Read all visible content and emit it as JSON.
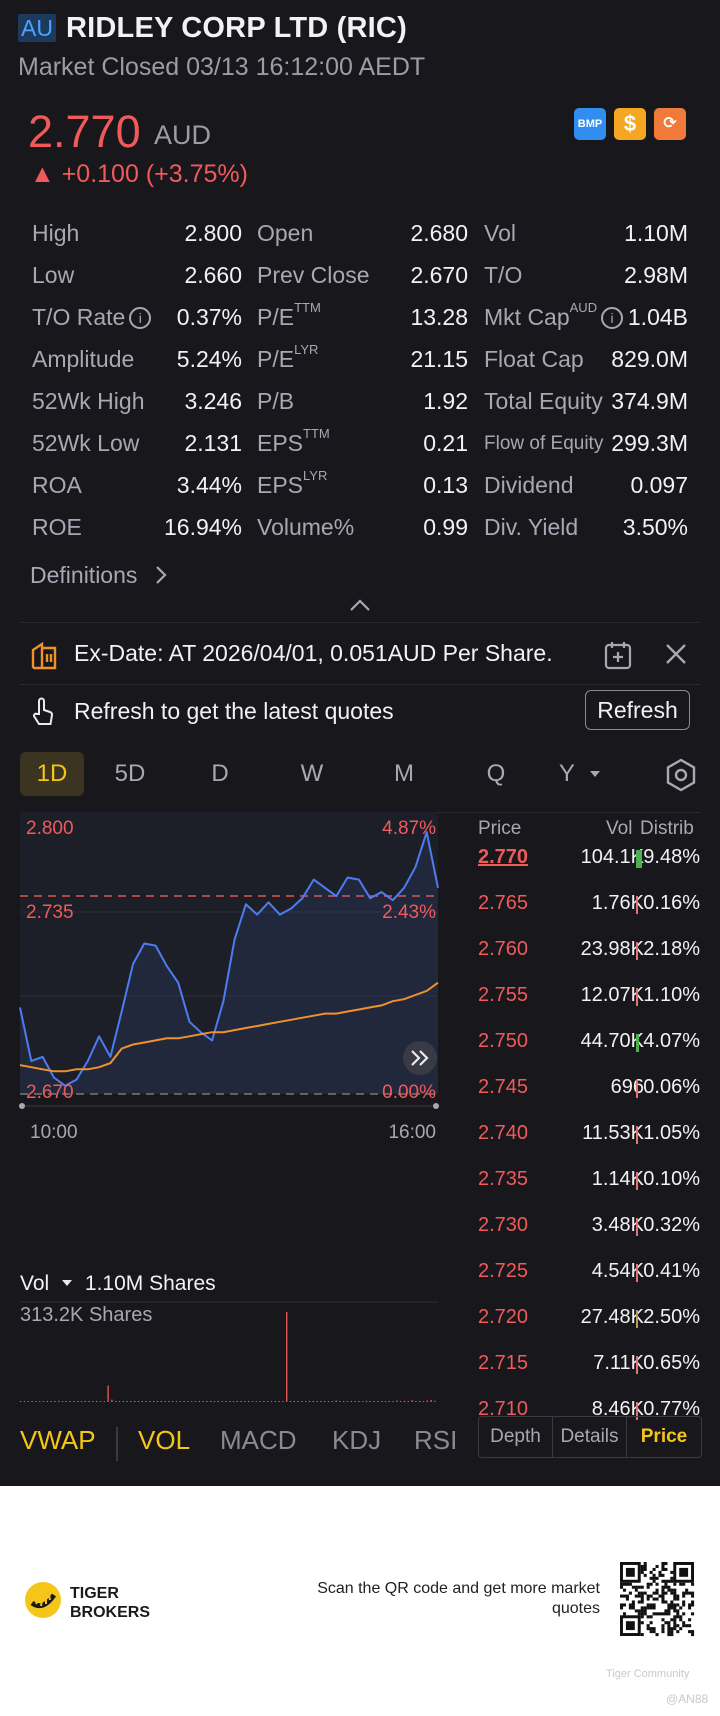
{
  "header": {
    "market_badge": "AU",
    "title": "RIDLEY CORP LTD (RIC)",
    "status": "Market Closed 03/13 16:12:00 AEDT",
    "price": "2.770",
    "currency": "AUD",
    "change": "▲ +0.100 (+3.75%)",
    "tags": [
      "BMP",
      "$",
      "⟳"
    ]
  },
  "stats": [
    [
      {
        "label": "High",
        "value": "2.800"
      },
      {
        "label": "Open",
        "value": "2.680"
      },
      {
        "label": "Vol",
        "value": "1.10M"
      }
    ],
    [
      {
        "label": "Low",
        "value": "2.660"
      },
      {
        "label": "Prev Close",
        "value": "2.670"
      },
      {
        "label": "T/O",
        "value": "2.98M"
      }
    ],
    [
      {
        "label": "T/O Rate",
        "value": "0.37%"
      },
      {
        "label": "P/E",
        "sup": "TTM",
        "value": "13.28"
      },
      {
        "label": "Mkt Cap",
        "sup": "AUD",
        "value": "1.04B"
      }
    ],
    [
      {
        "label": "Amplitude",
        "value": "5.24%"
      },
      {
        "label": "P/E",
        "sup": "LYR",
        "value": "21.15"
      },
      {
        "label": "Float Cap",
        "value": "829.0M"
      }
    ],
    [
      {
        "label": "52Wk High",
        "value": "3.246"
      },
      {
        "label": "P/B",
        "value": "1.92"
      },
      {
        "label": "Total Equity",
        "value": "374.9M"
      }
    ],
    [
      {
        "label": "52Wk Low",
        "value": "2.131"
      },
      {
        "label": "EPS",
        "sup": "TTM",
        "value": "0.21"
      },
      {
        "label": "Flow of Equity",
        "value": "299.3M"
      }
    ],
    [
      {
        "label": "ROA",
        "value": "3.44%"
      },
      {
        "label": "EPS",
        "sup": "LYR",
        "value": "0.13"
      },
      {
        "label": "Dividend",
        "value": "0.097"
      }
    ],
    [
      {
        "label": "ROE",
        "value": "16.94%"
      },
      {
        "label": "Volume%",
        "value": "0.99"
      },
      {
        "label": "Div. Yield",
        "value": "3.50%"
      }
    ]
  ],
  "definitions_label": "Definitions",
  "exdate_text": "Ex-Date: AT 2026/04/01, 0.051AUD Per Share.",
  "refresh_text": "Refresh to get the latest quotes",
  "refresh_button": "Refresh",
  "period_tabs": [
    "1D",
    "5D",
    "D",
    "W",
    "M",
    "Q",
    "Y"
  ],
  "chart_data": {
    "type": "line",
    "x_tick_labels": [
      "10:00",
      "16:00"
    ],
    "y_left_labels": [
      "2.800",
      "2.735",
      "2.670"
    ],
    "y_right_labels": [
      "4.87%",
      "2.43%",
      "0.00%"
    ],
    "ylim": [
      2.67,
      2.8
    ],
    "prev_close": 2.67,
    "series": [
      {
        "color": "#4d7cf0",
        "values": [
          2.712,
          2.686,
          2.688,
          2.678,
          2.674,
          2.677,
          2.686,
          2.698,
          2.688,
          2.71,
          2.733,
          2.743,
          2.742,
          2.732,
          2.724,
          2.705,
          2.7,
          2.696,
          2.715,
          2.745,
          2.762,
          2.757,
          2.763,
          2.757,
          2.76,
          2.765,
          2.774,
          2.77,
          2.766,
          2.775,
          2.774,
          2.765,
          2.768,
          2.764,
          2.77,
          2.78,
          2.797,
          2.77
        ]
      },
      {
        "color": "#f0922b",
        "values": [
          2.684,
          2.683,
          2.682,
          2.681,
          2.681,
          2.682,
          2.682,
          2.683,
          2.685,
          2.692,
          2.694,
          2.695,
          2.696,
          2.697,
          2.697,
          2.698,
          2.699,
          2.7,
          2.7,
          2.701,
          2.702,
          2.703,
          2.704,
          2.705,
          2.706,
          2.707,
          2.708,
          2.709,
          2.709,
          2.71,
          2.711,
          2.712,
          2.713,
          2.715,
          2.716,
          2.718,
          2.72,
          2.724
        ]
      }
    ]
  },
  "volume": {
    "label": "Vol",
    "total": "1.10M Shares",
    "scale_label": "313.2K Shares",
    "max": 313.2,
    "bars": [
      2,
      1,
      3,
      1,
      2,
      1,
      1,
      2,
      1,
      1,
      4,
      1,
      2,
      1,
      1,
      1,
      2,
      1,
      3,
      1,
      1,
      1,
      2,
      55,
      8,
      3,
      2,
      1,
      2,
      1,
      1,
      2,
      1,
      3,
      1,
      2,
      1,
      2,
      1,
      1,
      2,
      3,
      1,
      1,
      2,
      1,
      1,
      2,
      1,
      3,
      2,
      1,
      4,
      1,
      2,
      1,
      1,
      2,
      1,
      1,
      2,
      3,
      1,
      1,
      2,
      1,
      2,
      1,
      1,
      2,
      300,
      2,
      1,
      3,
      2,
      1,
      4,
      2,
      3,
      1,
      2,
      1,
      2,
      5,
      3,
      1,
      2,
      1,
      3,
      2,
      1,
      4,
      2,
      1,
      3,
      2,
      1,
      2,
      3,
      5,
      2,
      4,
      3,
      6,
      2,
      4,
      3,
      5,
      7,
      4
    ]
  },
  "indicator_tabs": [
    "VWAP",
    "VOL",
    "MACD",
    "KDJ",
    "RSI"
  ],
  "price_table": {
    "headers": {
      "price": "Price",
      "vol": "Vol",
      "distrib": "Distrib"
    },
    "rows": [
      {
        "price": "2.770",
        "vol": "104.1K",
        "distrib": "9.48%",
        "pct": 9.48,
        "bar": "#4caf50"
      },
      {
        "price": "2.765",
        "vol": "1.76K",
        "distrib": "0.16%",
        "pct": 0.16,
        "bar": "#e57373"
      },
      {
        "price": "2.760",
        "vol": "23.98K",
        "distrib": "2.18%",
        "pct": 2.18,
        "bar": "#e57373"
      },
      {
        "price": "2.755",
        "vol": "12.07K",
        "distrib": "1.10%",
        "pct": 1.1,
        "bar": "#e57373"
      },
      {
        "price": "2.750",
        "vol": "44.70K",
        "distrib": "4.07%",
        "pct": 4.07,
        "bar": "#4caf50"
      },
      {
        "price": "2.745",
        "vol": "696",
        "distrib": "0.06%",
        "pct": 0.06,
        "bar": "#e57373"
      },
      {
        "price": "2.740",
        "vol": "11.53K",
        "distrib": "1.05%",
        "pct": 1.05,
        "bar": "#e57373"
      },
      {
        "price": "2.735",
        "vol": "1.14K",
        "distrib": "0.10%",
        "pct": 0.1,
        "bar": "#e57373"
      },
      {
        "price": "2.730",
        "vol": "3.48K",
        "distrib": "0.32%",
        "pct": 0.32,
        "bar": "#e57373"
      },
      {
        "price": "2.725",
        "vol": "4.54K",
        "distrib": "0.41%",
        "pct": 0.41,
        "bar": "#e57373"
      },
      {
        "price": "2.720",
        "vol": "27.48K",
        "distrib": "2.50%",
        "pct": 2.5,
        "bar": "#b59a5a"
      },
      {
        "price": "2.715",
        "vol": "7.11K",
        "distrib": "0.65%",
        "pct": 0.65,
        "bar": "#e57373"
      },
      {
        "price": "2.710",
        "vol": "8.46K",
        "distrib": "0.77%",
        "pct": 0.77,
        "bar": "#e57373"
      }
    ]
  },
  "detail_tabs": [
    "Depth",
    "Details",
    "Price"
  ],
  "footer": {
    "brand_line1": "TIGER",
    "brand_line2": "BROKERS",
    "qr_caption": "Scan the QR code and get more market quotes",
    "watermark1": "Tiger Community",
    "watermark2": "@AN88"
  },
  "colors": {
    "up": "#f05a5a",
    "accent": "#f5c518",
    "line": "#4d7cf0",
    "avg": "#f0922b"
  }
}
